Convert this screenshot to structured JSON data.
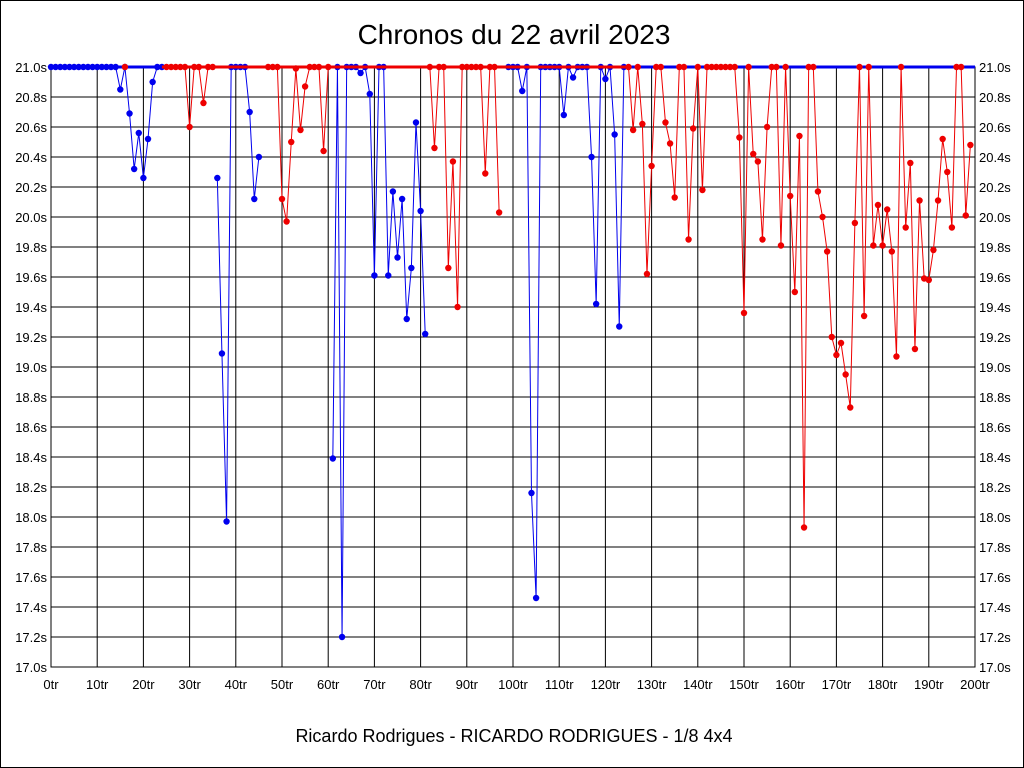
{
  "chart_data": {
    "type": "line",
    "title": "Chronos du 22 avril 2023",
    "subtitle": "Ricardo Rodrigues - RICARDO RODRIGUES - 1/8 4x4",
    "xlabel": "",
    "ylabel": "",
    "xlim": [
      0,
      200
    ],
    "ylim": [
      17.0,
      21.0
    ],
    "grid": true,
    "legend": "none",
    "x_ticks": [
      "0tr",
      "10tr",
      "20tr",
      "30tr",
      "40tr",
      "50tr",
      "60tr",
      "70tr",
      "80tr",
      "90tr",
      "100tr",
      "110tr",
      "120tr",
      "130tr",
      "140tr",
      "150tr",
      "160tr",
      "170tr",
      "180tr",
      "190tr",
      "200tr"
    ],
    "y_ticks": [
      "17.0s",
      "17.2s",
      "17.4s",
      "17.6s",
      "17.8s",
      "18.0s",
      "18.2s",
      "18.4s",
      "18.6s",
      "18.8s",
      "19.0s",
      "19.2s",
      "19.4s",
      "19.6s",
      "19.8s",
      "20.0s",
      "20.2s",
      "20.4s",
      "20.6s",
      "20.8s",
      "21.0s"
    ],
    "colors": {
      "blue": "#0000ee",
      "red": "#ee0000"
    },
    "series": [
      {
        "color": "blue",
        "points": [
          [
            0,
            21.0
          ],
          [
            1,
            21.0
          ],
          [
            2,
            21.0
          ],
          [
            3,
            21.0
          ],
          [
            4,
            21.0
          ],
          [
            5,
            21.0
          ],
          [
            6,
            21.0
          ],
          [
            7,
            21.0
          ],
          [
            8,
            21.0
          ],
          [
            9,
            21.0
          ],
          [
            10,
            21.0
          ],
          [
            11,
            21.0
          ],
          [
            12,
            21.0
          ],
          [
            13,
            21.0
          ],
          [
            14,
            21.0
          ],
          [
            15,
            20.85
          ],
          [
            16,
            21.0
          ],
          [
            17,
            20.69
          ],
          [
            18,
            20.32
          ],
          [
            19,
            20.56
          ],
          [
            20,
            20.26
          ],
          [
            21,
            20.52
          ],
          [
            22,
            20.9
          ],
          [
            23,
            21.0
          ],
          [
            24,
            21.0
          ],
          [
            36,
            20.26
          ],
          [
            37,
            19.09
          ],
          [
            38,
            17.97
          ],
          [
            39,
            21.0
          ],
          [
            40,
            21.0
          ],
          [
            41,
            21.0
          ],
          [
            42,
            21.0
          ],
          [
            43,
            20.7
          ],
          [
            44,
            20.12
          ],
          [
            45,
            20.4
          ],
          [
            61,
            18.39
          ],
          [
            62,
            21.0
          ],
          [
            63,
            17.2
          ],
          [
            64,
            21.0
          ],
          [
            65,
            21.0
          ],
          [
            66,
            21.0
          ],
          [
            67,
            20.96
          ],
          [
            68,
            21.0
          ],
          [
            69,
            20.82
          ],
          [
            70,
            19.61
          ],
          [
            71,
            21.0
          ],
          [
            72,
            21.0
          ],
          [
            73,
            19.61
          ],
          [
            74,
            20.17
          ],
          [
            75,
            19.73
          ],
          [
            76,
            20.12
          ],
          [
            77,
            19.32
          ],
          [
            78,
            19.66
          ],
          [
            79,
            20.63
          ],
          [
            80,
            20.04
          ],
          [
            81,
            19.22
          ],
          [
            99,
            21.0
          ],
          [
            100,
            21.0
          ],
          [
            101,
            21.0
          ],
          [
            102,
            20.84
          ],
          [
            103,
            21.0
          ],
          [
            104,
            18.16
          ],
          [
            105,
            17.46
          ],
          [
            106,
            21.0
          ],
          [
            107,
            21.0
          ],
          [
            108,
            21.0
          ],
          [
            109,
            21.0
          ],
          [
            110,
            21.0
          ],
          [
            111,
            20.68
          ],
          [
            112,
            21.0
          ],
          [
            113,
            20.93
          ],
          [
            114,
            21.0
          ],
          [
            115,
            21.0
          ],
          [
            116,
            21.0
          ],
          [
            117,
            20.4
          ],
          [
            118,
            19.42
          ],
          [
            119,
            21.0
          ],
          [
            120,
            20.92
          ],
          [
            121,
            21.0
          ],
          [
            122,
            20.55
          ],
          [
            123,
            19.27
          ],
          [
            124,
            21.0
          ]
        ],
        "baseline_to": 200
      },
      {
        "color": "red",
        "points": [
          [
            16,
            21.0
          ],
          [
            25,
            21.0
          ],
          [
            26,
            21.0
          ],
          [
            27,
            21.0
          ],
          [
            28,
            21.0
          ],
          [
            29,
            21.0
          ],
          [
            30,
            20.6
          ],
          [
            31,
            21.0
          ],
          [
            32,
            21.0
          ],
          [
            33,
            20.76
          ],
          [
            34,
            21.0
          ],
          [
            35,
            21.0
          ],
          [
            47,
            21.0
          ],
          [
            48,
            21.0
          ],
          [
            49,
            21.0
          ],
          [
            50,
            20.12
          ],
          [
            51,
            19.97
          ],
          [
            52,
            20.5
          ],
          [
            53,
            20.99
          ],
          [
            54,
            20.58
          ],
          [
            55,
            20.87
          ],
          [
            56,
            21.0
          ],
          [
            57,
            21.0
          ],
          [
            58,
            21.0
          ],
          [
            59,
            20.44
          ],
          [
            60,
            21.0
          ],
          [
            82,
            21.0
          ],
          [
            83,
            20.46
          ],
          [
            84,
            21.0
          ],
          [
            85,
            21.0
          ],
          [
            86,
            19.66
          ],
          [
            87,
            20.37
          ],
          [
            88,
            19.4
          ],
          [
            89,
            21.0
          ],
          [
            90,
            21.0
          ],
          [
            91,
            21.0
          ],
          [
            92,
            21.0
          ],
          [
            93,
            21.0
          ],
          [
            94,
            20.29
          ],
          [
            95,
            21.0
          ],
          [
            96,
            21.0
          ],
          [
            97,
            20.03
          ],
          [
            125,
            21.0
          ],
          [
            126,
            20.58
          ],
          [
            127,
            21.0
          ],
          [
            128,
            20.62
          ],
          [
            129,
            19.62
          ],
          [
            130,
            20.34
          ],
          [
            131,
            21.0
          ],
          [
            132,
            21.0
          ],
          [
            133,
            20.63
          ],
          [
            134,
            20.49
          ],
          [
            135,
            20.13
          ],
          [
            136,
            21.0
          ],
          [
            137,
            21.0
          ],
          [
            138,
            19.85
          ],
          [
            139,
            20.59
          ],
          [
            140,
            21.0
          ],
          [
            141,
            20.18
          ],
          [
            142,
            21.0
          ],
          [
            143,
            21.0
          ],
          [
            144,
            21.0
          ],
          [
            145,
            21.0
          ],
          [
            146,
            21.0
          ],
          [
            147,
            21.0
          ],
          [
            148,
            21.0
          ],
          [
            149,
            20.53
          ],
          [
            150,
            19.36
          ],
          [
            151,
            21.0
          ],
          [
            152,
            20.42
          ],
          [
            153,
            20.37
          ],
          [
            154,
            19.85
          ],
          [
            155,
            20.6
          ],
          [
            156,
            21.0
          ],
          [
            157,
            21.0
          ],
          [
            158,
            19.81
          ],
          [
            159,
            21.0
          ],
          [
            160,
            20.14
          ],
          [
            161,
            19.5
          ],
          [
            162,
            20.54
          ],
          [
            163,
            17.93
          ],
          [
            164,
            21.0
          ],
          [
            165,
            21.0
          ],
          [
            166,
            20.17
          ],
          [
            167,
            20.0
          ],
          [
            168,
            19.77
          ],
          [
            169,
            19.2
          ],
          [
            170,
            19.08
          ],
          [
            171,
            19.16
          ],
          [
            172,
            18.95
          ],
          [
            173,
            18.73
          ],
          [
            174,
            19.96
          ],
          [
            175,
            21.0
          ],
          [
            176,
            19.34
          ],
          [
            177,
            21.0
          ],
          [
            178,
            19.81
          ],
          [
            179,
            20.08
          ],
          [
            180,
            19.81
          ],
          [
            181,
            20.05
          ],
          [
            182,
            19.77
          ],
          [
            183,
            19.07
          ],
          [
            184,
            21.0
          ],
          [
            185,
            19.93
          ],
          [
            186,
            20.36
          ],
          [
            187,
            19.12
          ],
          [
            188,
            20.11
          ],
          [
            189,
            19.59
          ],
          [
            190,
            19.58
          ],
          [
            191,
            19.78
          ],
          [
            192,
            20.11
          ],
          [
            193,
            20.52
          ],
          [
            194,
            20.3
          ],
          [
            195,
            19.93
          ],
          [
            196,
            21.0
          ],
          [
            197,
            21.0
          ],
          [
            198,
            20.01
          ],
          [
            199,
            20.48
          ]
        ],
        "baseline_from": 24,
        "baseline_to": 125
      }
    ]
  }
}
